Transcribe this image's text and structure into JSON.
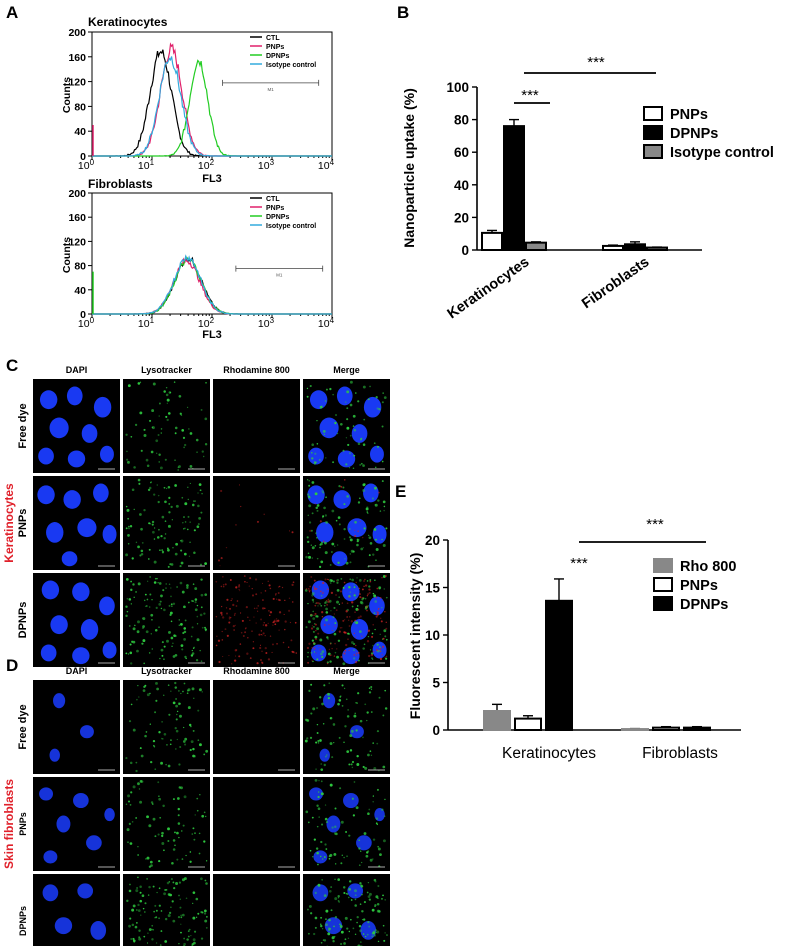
{
  "panel_letters": {
    "a": "A",
    "b": "B",
    "c": "C",
    "d": "D",
    "e": "E"
  },
  "panel_a": {
    "subtitle_top": "Keratinocytes",
    "subtitle_bottom": "Fibroblasts",
    "ylabel": "Counts",
    "xlabel": "FL3",
    "marker_label": "M1",
    "legend": [
      "CTL",
      "PNPs",
      "DPNPs",
      "Isotype control"
    ],
    "yticks": [
      "0",
      "40",
      "80",
      "120",
      "160",
      "200"
    ],
    "xticks": [
      {
        "base": "10",
        "exp": "0"
      },
      {
        "base": "10",
        "exp": "1"
      },
      {
        "base": "10",
        "exp": "2"
      },
      {
        "base": "10",
        "exp": "3"
      },
      {
        "base": "10",
        "exp": "4"
      }
    ]
  },
  "panel_c": {
    "row_group_label": "Keratinocytes",
    "columns": [
      "DAPI",
      "Lysotracker",
      "Rhodamine 800",
      "Merge"
    ],
    "rows": [
      "Free dye",
      "PNPs",
      "DPNPs"
    ]
  },
  "panel_d": {
    "row_group_label": "Skin fibroblasts",
    "columns": [
      "DAPI",
      "Lysotracker",
      "Rhodamine 800",
      "Merge"
    ],
    "rows": [
      "Free dye",
      "PNPs",
      "DPNPs"
    ]
  },
  "colors": {
    "ctl": "#000000",
    "pnps": "#e0206a",
    "dpnps": "#22cc22",
    "isotype": "#33aadd",
    "dapi": "#1a3cff",
    "lyso": "#2ecc40",
    "rho": "#cc2222",
    "accent_red": "#e0202a",
    "gray_bar": "#888888"
  },
  "chart_data": [
    {
      "panel": "A-top",
      "type": "line",
      "title": "Keratinocytes",
      "xlabel": "FL3",
      "ylabel": "Counts",
      "xscale": "log",
      "xlim": [
        1,
        10000
      ],
      "ylim": [
        0,
        200
      ],
      "series": [
        {
          "name": "CTL",
          "peak_x": 14,
          "peak_y": 168,
          "width": 0.18
        },
        {
          "name": "PNPs",
          "peak_x": 21,
          "peak_y": 172,
          "width": 0.18
        },
        {
          "name": "DPNPs",
          "peak_x": 60,
          "peak_y": 155,
          "width": 0.15
        },
        {
          "name": "Isotype control",
          "peak_x": 20,
          "peak_y": 160,
          "width": 0.18
        }
      ],
      "marker": {
        "label": "M1",
        "x_range": [
          150,
          6000
        ],
        "y": 118
      }
    },
    {
      "panel": "A-bottom",
      "type": "line",
      "title": "Fibroblasts",
      "xlabel": "FL3",
      "ylabel": "Counts",
      "xscale": "log",
      "xlim": [
        1,
        10000
      ],
      "ylim": [
        0,
        200
      ],
      "series": [
        {
          "name": "CTL",
          "peak_x": 40,
          "peak_y": 92,
          "width": 0.22
        },
        {
          "name": "PNPs",
          "peak_x": 38,
          "peak_y": 88,
          "width": 0.22
        },
        {
          "name": "DPNPs",
          "peak_x": 40,
          "peak_y": 90,
          "width": 0.22
        },
        {
          "name": "Isotype control",
          "peak_x": 39,
          "peak_y": 94,
          "width": 0.22
        }
      ],
      "marker": {
        "label": "M1",
        "x_range": [
          250,
          7000
        ],
        "y": 75
      }
    },
    {
      "panel": "B",
      "type": "bar",
      "ylabel": "Nanoparticle uptake (%)",
      "ylim": [
        0,
        100
      ],
      "yticks": [
        "0",
        "20",
        "40",
        "60",
        "80",
        "100"
      ],
      "categories": [
        "Keratinocytes",
        "Fibroblasts"
      ],
      "series": [
        {
          "name": "PNPs",
          "values": [
            10.5,
            2.5
          ],
          "errors": [
            1.5,
            0.5
          ]
        },
        {
          "name": "DPNPs",
          "values": [
            76,
            3.5
          ],
          "errors": [
            4,
            1.5
          ]
        },
        {
          "name": "Isotype control",
          "values": [
            4.5,
            1.5
          ],
          "errors": [
            0.5,
            0.3
          ]
        }
      ],
      "legend": [
        "PNPs",
        "DPNPs",
        "Isotype control"
      ],
      "significance": [
        "***",
        "***"
      ]
    },
    {
      "panel": "E",
      "type": "bar",
      "ylabel": "Fluorescent intensity (%)",
      "ylim": [
        0,
        20
      ],
      "yticks": [
        "0",
        "5",
        "10",
        "15",
        "20"
      ],
      "categories": [
        "Keratinocytes",
        "Fibroblasts"
      ],
      "series": [
        {
          "name": "Rho 800",
          "values": [
            2.0,
            0.1
          ],
          "errors": [
            0.7,
            0.05
          ]
        },
        {
          "name": "PNPs",
          "values": [
            1.2,
            0.25
          ],
          "errors": [
            0.3,
            0.1
          ]
        },
        {
          "name": "DPNPs",
          "values": [
            13.6,
            0.25
          ],
          "errors": [
            2.3,
            0.1
          ]
        }
      ],
      "legend": [
        "Rho 800",
        "PNPs",
        "DPNPs"
      ],
      "significance": [
        "***",
        "***"
      ]
    }
  ]
}
